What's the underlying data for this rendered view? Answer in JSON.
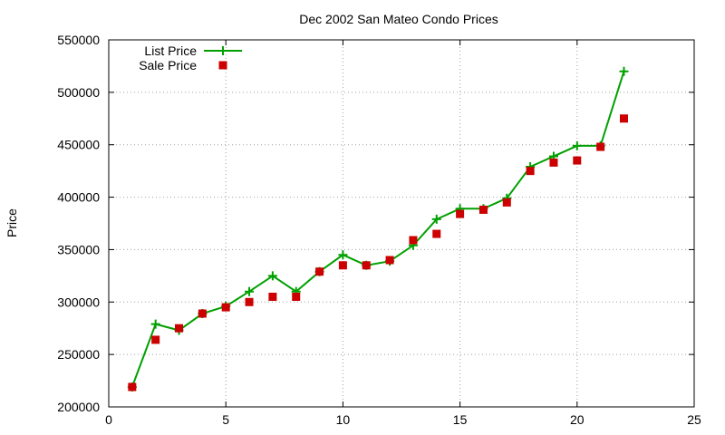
{
  "chart_data": {
    "type": "line",
    "title": "Dec 2002 San Mateo Condo Prices",
    "xlabel": "",
    "ylabel": "Price",
    "xlim": [
      0,
      25
    ],
    "ylim": [
      200000,
      550000
    ],
    "xticks": [
      0,
      5,
      10,
      15,
      20,
      25
    ],
    "yticks": [
      200000,
      250000,
      300000,
      350000,
      400000,
      450000,
      500000,
      550000
    ],
    "grid": true,
    "legend_position": "top-left",
    "series": [
      {
        "name": "List Price",
        "style": "line-plus",
        "color": "#00a000",
        "x": [
          1,
          2,
          3,
          4,
          5,
          6,
          7,
          8,
          9,
          10,
          11,
          12,
          13,
          14,
          15,
          16,
          17,
          18,
          19,
          20,
          21,
          22
        ],
        "y": [
          219000,
          279000,
          273000,
          289000,
          296000,
          310000,
          325000,
          310000,
          329000,
          345000,
          335000,
          339000,
          354000,
          379000,
          389000,
          389000,
          399000,
          429000,
          439000,
          449000,
          449000,
          520000
        ]
      },
      {
        "name": "Sale Price",
        "style": "square-points",
        "color": "#cc0000",
        "x": [
          1,
          2,
          3,
          4,
          5,
          6,
          7,
          8,
          9,
          10,
          11,
          12,
          13,
          14,
          15,
          16,
          17,
          18,
          19,
          20,
          21,
          22
        ],
        "y": [
          219000,
          264000,
          275000,
          289000,
          295000,
          300000,
          305000,
          305000,
          329000,
          335000,
          335000,
          340000,
          359000,
          365000,
          384000,
          388000,
          395000,
          425000,
          433000,
          435000,
          448000,
          475000
        ]
      }
    ]
  }
}
